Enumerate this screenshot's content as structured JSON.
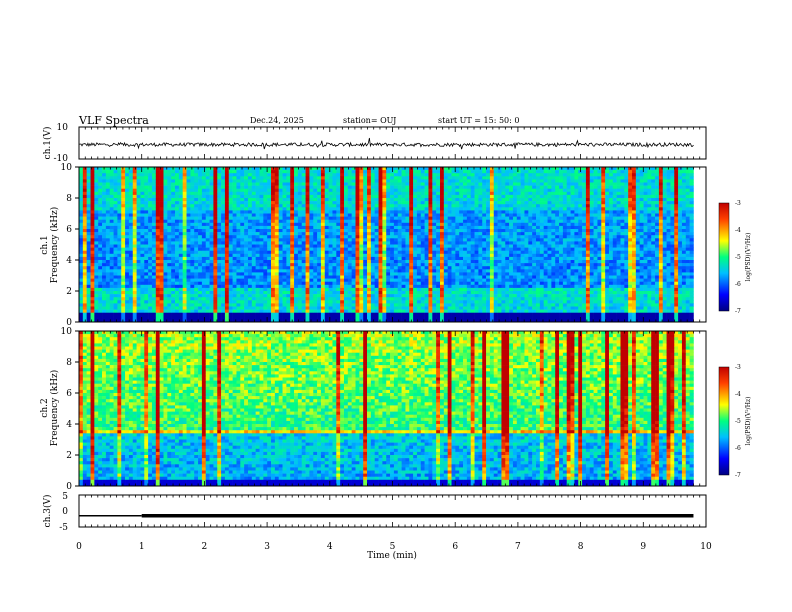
{
  "header": {
    "title": "VLF Spectra",
    "date": "Dec.24, 2025",
    "station": "station= OUJ",
    "start": "start  UT =   15: 50: 0"
  },
  "chart_data": [
    {
      "type": "line",
      "id": "ch1-waveform",
      "ylabel": "ch.1(V)",
      "ylim": [
        -10,
        10
      ],
      "ytick_labels": [
        "10",
        "-10"
      ],
      "xlim": [
        0,
        10
      ],
      "baseline": -1,
      "note": "dense noisy waveform around the baseline with sparse spikes"
    },
    {
      "type": "heatmap",
      "id": "ch1-spectrogram",
      "ylabel": "Frequency (kHz)",
      "channel_label": "ch.1",
      "ylim": [
        0,
        10
      ],
      "ytick_labels": [
        "0",
        "2",
        "4",
        "6",
        "8",
        "10"
      ],
      "xlim": [
        0,
        10
      ],
      "colorbar": {
        "range": [
          -7,
          -3
        ],
        "tick_labels": [
          "-3",
          "-4",
          "-5",
          "-6",
          "-7"
        ],
        "label": "log(PSD)(V²/Hz)"
      }
    },
    {
      "type": "heatmap",
      "id": "ch2-spectrogram",
      "ylabel": "Frequency (kHz)",
      "channel_label": "ch.2",
      "ylim": [
        0,
        10
      ],
      "ytick_labels": [
        "0",
        "2",
        "4",
        "6",
        "8",
        "10"
      ],
      "xlim": [
        0,
        10
      ],
      "colorbar": {
        "range": [
          -7,
          -3
        ],
        "tick_labels": [
          "-3",
          "-4",
          "-5",
          "-6",
          "-7"
        ],
        "label": "log(PSD)(V²/Hz)"
      }
    },
    {
      "type": "line",
      "id": "ch3-waveform",
      "ylabel": "ch.3(V)",
      "ylim": [
        -5,
        5
      ],
      "ytick_labels": [
        "5",
        "0",
        "-5"
      ],
      "xlim": [
        0,
        10
      ],
      "series": [
        {
          "x": [
            0,
            1.0
          ],
          "y": [
            -1.5,
            -1.5
          ]
        },
        {
          "x": [
            1.0,
            9.8
          ],
          "y": [
            -1.5,
            -1.5
          ]
        }
      ]
    }
  ],
  "xaxis": {
    "label": "Time (min)",
    "tick_labels": [
      "0",
      "1",
      "2",
      "3",
      "4",
      "5",
      "6",
      "7",
      "8",
      "9",
      "10"
    ],
    "range": [
      0,
      10
    ]
  },
  "colors": {
    "low": "#00008b",
    "high": "#cc0000"
  }
}
